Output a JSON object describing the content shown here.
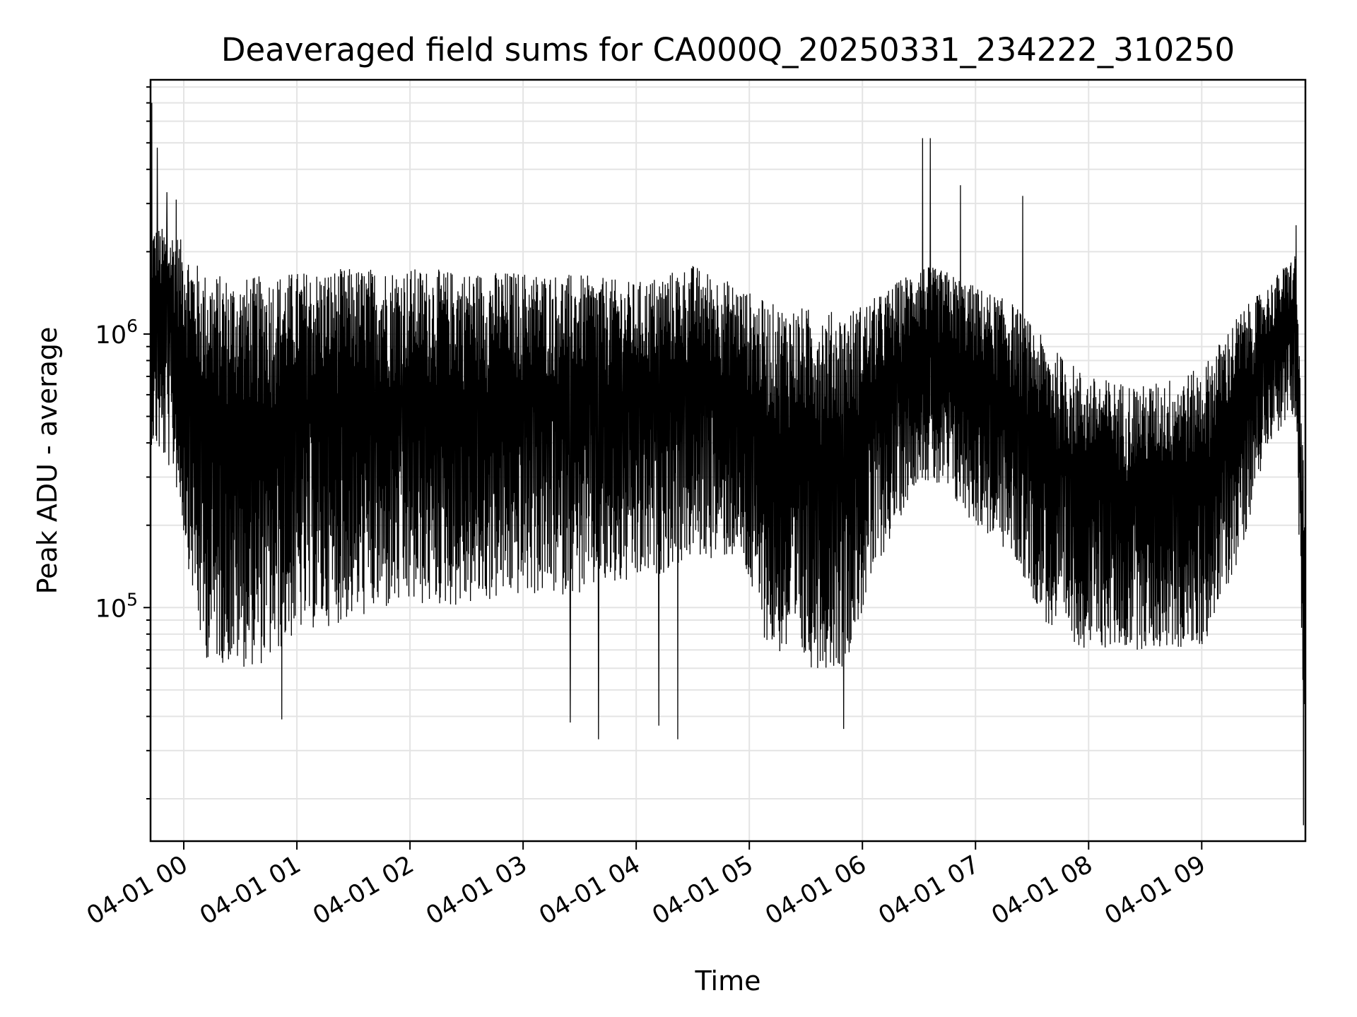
{
  "chart_data": {
    "type": "line",
    "title": "Deaveraged field sums for CA000Q_20250331_234222_310250",
    "xlabel": "Time",
    "ylabel": "Peak ADU - average",
    "yscale": "log",
    "ylim": [
      14000,
      8500000
    ],
    "xlim": [
      "2025-03-31 23:42:22",
      "2025-04-01 09:55:00"
    ],
    "grid": true,
    "line_color": "#000000",
    "x_ticks": [
      {
        "label": "04-01 00",
        "time": "2025-04-01 00:00"
      },
      {
        "label": "04-01 01",
        "time": "2025-04-01 01:00"
      },
      {
        "label": "04-01 02",
        "time": "2025-04-01 02:00"
      },
      {
        "label": "04-01 03",
        "time": "2025-04-01 03:00"
      },
      {
        "label": "04-01 04",
        "time": "2025-04-01 04:00"
      },
      {
        "label": "04-01 05",
        "time": "2025-04-01 05:00"
      },
      {
        "label": "04-01 06",
        "time": "2025-04-01 06:00"
      },
      {
        "label": "04-01 07",
        "time": "2025-04-01 07:00"
      },
      {
        "label": "04-01 08",
        "time": "2025-04-01 08:00"
      },
      {
        "label": "04-01 09",
        "time": "2025-04-01 09:00"
      }
    ],
    "y_ticks": [
      {
        "base": "10",
        "exp": "5",
        "value": 100000
      },
      {
        "base": "10",
        "exp": "6",
        "value": 1000000
      }
    ],
    "envelope": {
      "time": [
        "2025-03-31 23:42",
        "2025-03-31 23:55",
        "2025-04-01 00:10",
        "2025-04-01 00:30",
        "2025-04-01 00:45",
        "2025-04-01 01:00",
        "2025-04-01 01:30",
        "2025-04-01 02:00",
        "2025-04-01 02:30",
        "2025-04-01 03:00",
        "2025-04-01 03:30",
        "2025-04-01 04:00",
        "2025-04-01 04:30",
        "2025-04-01 04:55",
        "2025-04-01 05:10",
        "2025-04-01 05:30",
        "2025-04-01 05:50",
        "2025-04-01 06:10",
        "2025-04-01 06:30",
        "2025-04-01 06:45",
        "2025-04-01 07:00",
        "2025-04-01 07:20",
        "2025-04-01 07:40",
        "2025-04-01 08:00",
        "2025-04-01 08:30",
        "2025-04-01 09:00",
        "2025-04-01 09:20",
        "2025-04-01 09:35",
        "2025-04-01 09:50",
        "2025-04-01 09:55"
      ],
      "upper": [
        2500000,
        2400000,
        1700000,
        1600000,
        1650000,
        1700000,
        1750000,
        1750000,
        1700000,
        1700000,
        1650000,
        1550000,
        1800000,
        1500000,
        1300000,
        1250000,
        1200000,
        1400000,
        1800000,
        1700000,
        1500000,
        1300000,
        900000,
        700000,
        650000,
        750000,
        1200000,
        1500000,
        2000000,
        200000
      ],
      "lower": [
        400000,
        300000,
        65000,
        60000,
        62000,
        80000,
        90000,
        100000,
        100000,
        110000,
        110000,
        120000,
        150000,
        150000,
        70000,
        60000,
        60000,
        150000,
        300000,
        250000,
        200000,
        150000,
        80000,
        70000,
        70000,
        70000,
        150000,
        400000,
        500000,
        20000
      ]
    },
    "spikes": [
      {
        "time": "2025-03-31 23:43",
        "value": 7000000
      },
      {
        "time": "2025-03-31 23:46",
        "value": 4800000
      },
      {
        "time": "2025-03-31 23:51",
        "value": 3300000
      },
      {
        "time": "2025-03-31 23:56",
        "value": 3100000
      },
      {
        "time": "2025-04-01 06:32",
        "value": 5200000
      },
      {
        "time": "2025-04-01 06:36",
        "value": 5200000
      },
      {
        "time": "2025-04-01 06:52",
        "value": 3500000
      },
      {
        "time": "2025-04-01 07:25",
        "value": 3200000
      },
      {
        "time": "2025-04-01 09:50",
        "value": 2500000
      },
      {
        "time": "2025-04-01 00:52",
        "value": 39000
      },
      {
        "time": "2025-04-01 03:40",
        "value": 33000
      },
      {
        "time": "2025-04-01 04:22",
        "value": 33000
      },
      {
        "time": "2025-04-01 05:50",
        "value": 36000
      },
      {
        "time": "2025-04-01 03:25",
        "value": 38000
      },
      {
        "time": "2025-04-01 04:12",
        "value": 37000
      },
      {
        "time": "2025-04-01 09:54",
        "value": 16000
      }
    ]
  }
}
